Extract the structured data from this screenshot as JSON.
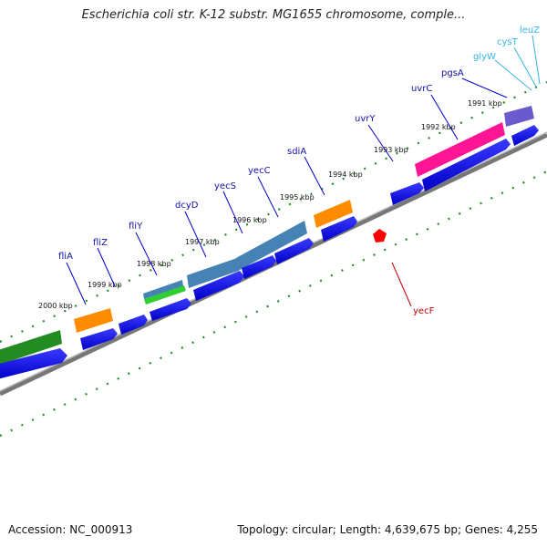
{
  "title": "Escherichia coli str. K-12 substr. MG1655 chromosome, comple...",
  "footer": {
    "accession": "Accession: NC_000913",
    "stats": "Topology: circular; Length: 4,639,675 bp; Genes: 4,255"
  },
  "kbp_labels": [
    "2000 kbp",
    "1999 kbp",
    "1998 kbp",
    "1997 kbp",
    "1996 kbp",
    "1995 kbp",
    "1994 kbp",
    "1993 kbp",
    "1992 kbp",
    "1991 kbp"
  ],
  "gene_labels": [
    "fliA",
    "fliZ",
    "fliY",
    "dcyD",
    "yecS",
    "yecC",
    "sdiA",
    "uvrY",
    "uvrC",
    "pgsA"
  ],
  "reverse_gene_labels": [
    "yecF"
  ],
  "trna_labels": [
    "glyW",
    "cysT",
    "leuZ"
  ],
  "colors": {
    "forward_gene": "#0000ee",
    "tick": "#228b22",
    "backbone": "#777777",
    "orange_feature": "#ff8c00",
    "pink_feature": "#ff1493",
    "steel_feature": "#4682b4",
    "green_feature": "#228b22",
    "purple_feature": "#6a5acd",
    "reverse_marker": "#ff0000",
    "trna_label": "#33b5e5"
  }
}
